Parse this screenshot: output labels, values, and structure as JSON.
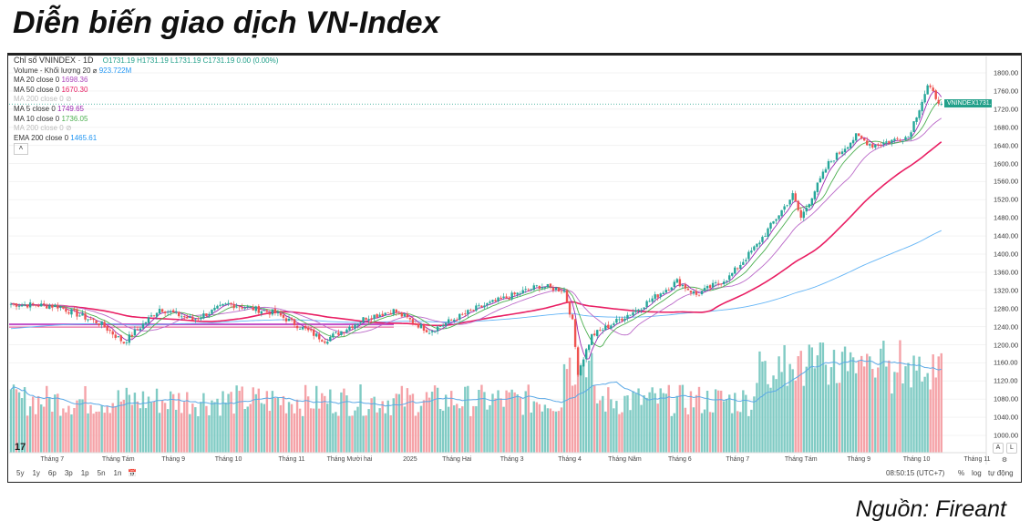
{
  "title": "Diễn biến giao dịch VN-Index",
  "source": "Nguồn: Fireant",
  "legend": {
    "symbol": "Chỉ số VNINDEX · 1D",
    "ohlc": "O1731.19 H1731.19 L1731.19 C1731.19 0.00 (0.00%)",
    "volume_label": "Volume - Khối lượng 20  ⌀",
    "volume_value": "923.722M",
    "ma20_label": "MA 20 close 0",
    "ma20_value": "1698.36",
    "ma50_label": "MA 50 close 0",
    "ma50_value": "1670.30",
    "ma200_label": "MA 200 close 0",
    "ma5_label": "MA 5 close 0",
    "ma5_value": "1749.65",
    "ma10_label": "MA 10 close 0",
    "ma10_value": "1736.05",
    "ma200b_label": "MA 200 close 0",
    "ema_label": "EMA 200 close 0",
    "ema_value": "1465.61"
  },
  "price_tag": {
    "symbol": "VNINDEX",
    "value": "1731.19"
  },
  "bottom": {
    "ranges": [
      "5y",
      "1y",
      "6p",
      "3p",
      "1p",
      "5n",
      "1n"
    ],
    "time": "08:50:15 (UTC+7)",
    "pct": "%",
    "log": "log",
    "auto": "tự động",
    "a": "A",
    "l": "L"
  },
  "colors": {
    "up": "#26a69a",
    "down": "#ef5350",
    "ma5": "#9c27b0",
    "ma10": "#4caf50",
    "ma20": "#ba68c8",
    "ma50": "#e91e63",
    "ema200": "#64b5f6",
    "vol_up": "#80cbc4",
    "vol_down": "#f5a3a8"
  },
  "chart_data": {
    "type": "candlestick",
    "title": "Chỉ số VNINDEX · 1D",
    "y_ticks": [
      1800,
      1760,
      1720,
      1680,
      1640,
      1600,
      1560,
      1520,
      1480,
      1440,
      1400,
      1360,
      1320,
      1280,
      1240,
      1200,
      1160,
      1120,
      1080,
      1040,
      1000
    ],
    "ylim": [
      1000,
      1800
    ],
    "x_ticks": [
      {
        "label": "Tháng 7",
        "i": 15
      },
      {
        "label": "Tháng Tám",
        "i": 39
      },
      {
        "label": "Tháng 9",
        "i": 59
      },
      {
        "label": "Tháng 10",
        "i": 79
      },
      {
        "label": "Tháng 11",
        "i": 102
      },
      {
        "label": "Tháng Mười hai",
        "i": 123
      },
      {
        "label": "2025",
        "i": 145
      },
      {
        "label": "Tháng Hai",
        "i": 162
      },
      {
        "label": "Tháng 3",
        "i": 182
      },
      {
        "label": "Tháng 4",
        "i": 203
      },
      {
        "label": "Tháng Năm",
        "i": 223
      },
      {
        "label": "Tháng 6",
        "i": 243
      },
      {
        "label": "Tháng 7",
        "i": 264
      },
      {
        "label": "Tháng Tám",
        "i": 287
      },
      {
        "label": "Tháng 9",
        "i": 308
      },
      {
        "label": "Tháng 10",
        "i": 329
      },
      {
        "label": "Tháng 11",
        "i": 351
      }
    ],
    "close_waypoints": [
      [
        0,
        1290
      ],
      [
        17,
        1285
      ],
      [
        33,
        1245
      ],
      [
        41,
        1205
      ],
      [
        54,
        1280
      ],
      [
        66,
        1255
      ],
      [
        79,
        1290
      ],
      [
        96,
        1270
      ],
      [
        114,
        1210
      ],
      [
        129,
        1260
      ],
      [
        139,
        1275
      ],
      [
        152,
        1230
      ],
      [
        169,
        1280
      ],
      [
        192,
        1330
      ],
      [
        201,
        1320
      ],
      [
        204,
        1250
      ],
      [
        206,
        1140
      ],
      [
        211,
        1220
      ],
      [
        228,
        1280
      ],
      [
        242,
        1340
      ],
      [
        249,
        1310
      ],
      [
        261,
        1350
      ],
      [
        271,
        1420
      ],
      [
        284,
        1530
      ],
      [
        287,
        1480
      ],
      [
        297,
        1600
      ],
      [
        307,
        1660
      ],
      [
        313,
        1640
      ],
      [
        326,
        1660
      ],
      [
        333,
        1770
      ],
      [
        338,
        1731.19
      ]
    ],
    "support_line": 1245,
    "last_close": 1731.19
  }
}
